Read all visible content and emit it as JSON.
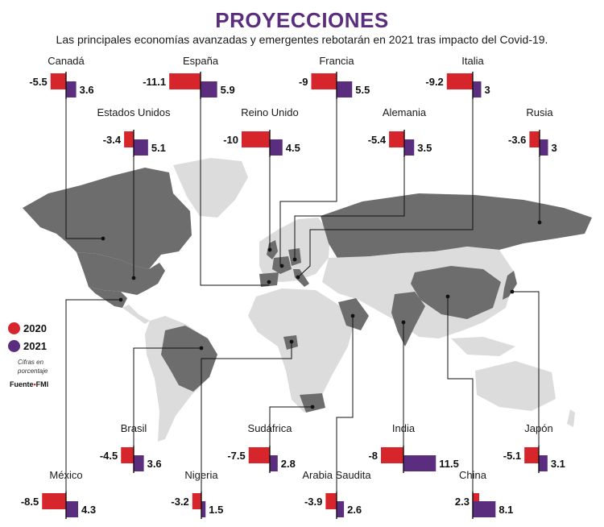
{
  "title": "PROYECCIONES",
  "subtitle": "Las principales economías avanzadas y emergentes rebotarán en 2021 tras impacto del Covid-19.",
  "legend": {
    "y2020": "2020",
    "y2021": "2021",
    "note": "Cifras en porcentaje",
    "source_label": "Fuente",
    "source_name": "FMI"
  },
  "colors": {
    "y2020": "#d7262b",
    "y2021": "#5b2d7e",
    "land": "#dcdcdc",
    "highlight": "#6d6d6d",
    "title": "#5b2d7e"
  },
  "chart_data": {
    "type": "bar",
    "title": "PROYECCIONES",
    "subtitle": "Las principales economías avanzadas y emergentes rebotarán en 2021 tras impacto del Covid-19.",
    "series_names": [
      "2020",
      "2021"
    ],
    "unit": "Cifras en porcentaje",
    "countries": [
      {
        "name": "Canadá",
        "v2020": -5.5,
        "v2021": 3.6
      },
      {
        "name": "España",
        "v2020": -11.1,
        "v2021": 5.9
      },
      {
        "name": "Francia",
        "v2020": -9,
        "v2021": 5.5
      },
      {
        "name": "Italia",
        "v2020": -9.2,
        "v2021": 3
      },
      {
        "name": "Estados Unidos",
        "v2020": -3.4,
        "v2021": 5.1
      },
      {
        "name": "Reino Unido",
        "v2020": -10,
        "v2021": 4.5
      },
      {
        "name": "Alemania",
        "v2020": -5.4,
        "v2021": 3.5
      },
      {
        "name": "Rusia",
        "v2020": -3.6,
        "v2021": 3
      },
      {
        "name": "Brasil",
        "v2020": -4.5,
        "v2021": 3.6
      },
      {
        "name": "Sudáfrica",
        "v2020": -7.5,
        "v2021": 2.8
      },
      {
        "name": "India",
        "v2020": -8,
        "v2021": 11.5
      },
      {
        "name": "Japón",
        "v2020": -5.1,
        "v2021": 3.1
      },
      {
        "name": "México",
        "v2020": -8.5,
        "v2021": 4.3
      },
      {
        "name": "Nigeria",
        "v2020": -3.2,
        "v2021": 1.5
      },
      {
        "name": "Arabia Saudita",
        "v2020": -3.9,
        "v2021": 2.6
      },
      {
        "name": "China",
        "v2020": 2.3,
        "v2021": 8.1
      }
    ]
  }
}
